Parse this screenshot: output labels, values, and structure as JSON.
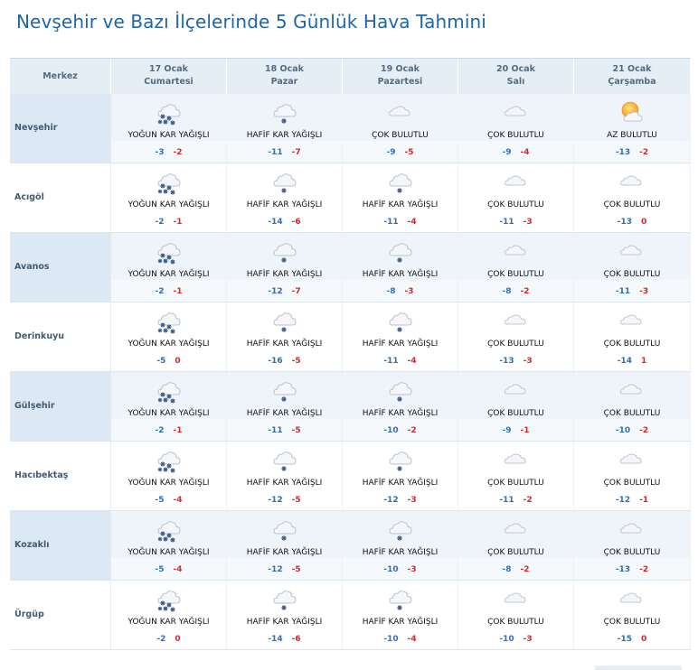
{
  "page": {
    "title": "Nevşehir ve Bazı İlçelerinde 5 Günlük Hava Tahmini"
  },
  "header": {
    "merkez": "Merkez",
    "days": [
      {
        "date": "17 Ocak",
        "weekday": "Cumartesi"
      },
      {
        "date": "18 Ocak",
        "weekday": "Pazar"
      },
      {
        "date": "19 Ocak",
        "weekday": "Pazartesi"
      },
      {
        "date": "20 Ocak",
        "weekday": "Salı"
      },
      {
        "date": "21 Ocak",
        "weekday": "Çarşamba"
      }
    ]
  },
  "icons": {
    "heavy_snow": "heavy-snow-icon",
    "light_snow": "light-snow-icon",
    "overcast": "overcast-cloud-icon",
    "partly_cloudy": "partly-cloudy-sun-icon"
  },
  "colors": {
    "title": "#1e66a8",
    "min_temp": "#2e6fb7",
    "max_temp": "#d02a2a",
    "header_bg": "#e5edf5",
    "row_shade": "#dce9f4"
  },
  "rows": [
    {
      "name": "Nevşehir",
      "days": [
        {
          "icon": "heavy_snow",
          "cond": "YOĞUN KAR YAĞIŞLI",
          "min": "-3",
          "max": "-2"
        },
        {
          "icon": "light_snow",
          "cond": "HAFİF KAR YAĞIŞLI",
          "min": "-11",
          "max": "-7"
        },
        {
          "icon": "overcast",
          "cond": "ÇOK BULUTLU",
          "min": "-9",
          "max": "-5"
        },
        {
          "icon": "overcast",
          "cond": "ÇOK BULUTLU",
          "min": "-9",
          "max": "-4"
        },
        {
          "icon": "partly_cloudy",
          "cond": "AZ BULUTLU",
          "min": "-13",
          "max": "-2"
        }
      ]
    },
    {
      "name": "Acıgöl",
      "days": [
        {
          "icon": "heavy_snow",
          "cond": "YOĞUN KAR YAĞIŞLI",
          "min": "-2",
          "max": "-1"
        },
        {
          "icon": "light_snow",
          "cond": "HAFİF KAR YAĞIŞLI",
          "min": "-14",
          "max": "-6"
        },
        {
          "icon": "light_snow",
          "cond": "HAFİF KAR YAĞIŞLI",
          "min": "-11",
          "max": "-4"
        },
        {
          "icon": "overcast",
          "cond": "ÇOK BULUTLU",
          "min": "-11",
          "max": "-3"
        },
        {
          "icon": "overcast",
          "cond": "ÇOK BULUTLU",
          "min": "-13",
          "max": "0"
        }
      ]
    },
    {
      "name": "Avanos",
      "days": [
        {
          "icon": "heavy_snow",
          "cond": "YOĞUN KAR YAĞIŞLI",
          "min": "-2",
          "max": "-1"
        },
        {
          "icon": "light_snow",
          "cond": "HAFİF KAR YAĞIŞLI",
          "min": "-12",
          "max": "-7"
        },
        {
          "icon": "light_snow",
          "cond": "HAFİF KAR YAĞIŞLI",
          "min": "-8",
          "max": "-3"
        },
        {
          "icon": "overcast",
          "cond": "ÇOK BULUTLU",
          "min": "-8",
          "max": "-2"
        },
        {
          "icon": "overcast",
          "cond": "ÇOK BULUTLU",
          "min": "-11",
          "max": "-3"
        }
      ]
    },
    {
      "name": "Derinkuyu",
      "days": [
        {
          "icon": "heavy_snow",
          "cond": "YOĞUN KAR YAĞIŞLI",
          "min": "-5",
          "max": "0"
        },
        {
          "icon": "light_snow",
          "cond": "HAFİF KAR YAĞIŞLI",
          "min": "-16",
          "max": "-5"
        },
        {
          "icon": "light_snow",
          "cond": "HAFİF KAR YAĞIŞLI",
          "min": "-11",
          "max": "-4"
        },
        {
          "icon": "overcast",
          "cond": "ÇOK BULUTLU",
          "min": "-13",
          "max": "-3"
        },
        {
          "icon": "overcast",
          "cond": "ÇOK BULUTLU",
          "min": "-14",
          "max": "1"
        }
      ]
    },
    {
      "name": "Gülşehir",
      "days": [
        {
          "icon": "heavy_snow",
          "cond": "YOĞUN KAR YAĞIŞLI",
          "min": "-2",
          "max": "-1"
        },
        {
          "icon": "light_snow",
          "cond": "HAFİF KAR YAĞIŞLI",
          "min": "-11",
          "max": "-5"
        },
        {
          "icon": "light_snow",
          "cond": "HAFİF KAR YAĞIŞLI",
          "min": "-10",
          "max": "-2"
        },
        {
          "icon": "overcast",
          "cond": "ÇOK BULUTLU",
          "min": "-9",
          "max": "-1"
        },
        {
          "icon": "overcast",
          "cond": "ÇOK BULUTLU",
          "min": "-10",
          "max": "-2"
        }
      ]
    },
    {
      "name": "Hacıbektaş",
      "days": [
        {
          "icon": "heavy_snow",
          "cond": "YOĞUN KAR YAĞIŞLI",
          "min": "-5",
          "max": "-4"
        },
        {
          "icon": "light_snow",
          "cond": "HAFİF KAR YAĞIŞLI",
          "min": "-12",
          "max": "-5"
        },
        {
          "icon": "light_snow",
          "cond": "HAFİF KAR YAĞIŞLI",
          "min": "-12",
          "max": "-3"
        },
        {
          "icon": "overcast",
          "cond": "ÇOK BULUTLU",
          "min": "-11",
          "max": "-2"
        },
        {
          "icon": "overcast",
          "cond": "ÇOK BULUTLU",
          "min": "-12",
          "max": "-1"
        }
      ]
    },
    {
      "name": "Kozaklı",
      "days": [
        {
          "icon": "heavy_snow",
          "cond": "YOĞUN KAR YAĞIŞLI",
          "min": "-5",
          "max": "-4"
        },
        {
          "icon": "light_snow",
          "cond": "HAFİF KAR YAĞIŞLI",
          "min": "-12",
          "max": "-5"
        },
        {
          "icon": "light_snow",
          "cond": "HAFİF KAR YAĞIŞLI",
          "min": "-10",
          "max": "-3"
        },
        {
          "icon": "overcast",
          "cond": "ÇOK BULUTLU",
          "min": "-8",
          "max": "-2"
        },
        {
          "icon": "overcast",
          "cond": "ÇOK BULUTLU",
          "min": "-13",
          "max": "-2"
        }
      ]
    },
    {
      "name": "Ürgüp",
      "days": [
        {
          "icon": "heavy_snow",
          "cond": "YOĞUN KAR YAĞIŞLI",
          "min": "-2",
          "max": "0"
        },
        {
          "icon": "light_snow",
          "cond": "HAFİF KAR YAĞIŞLI",
          "min": "-14",
          "max": "-6"
        },
        {
          "icon": "light_snow",
          "cond": "HAFİF KAR YAĞIŞLI",
          "min": "-10",
          "max": "-4"
        },
        {
          "icon": "overcast",
          "cond": "ÇOK BULUTLU",
          "min": "-10",
          "max": "-3"
        },
        {
          "icon": "overcast",
          "cond": "ÇOK BULUTLU",
          "min": "-15",
          "max": "0"
        }
      ]
    }
  ]
}
